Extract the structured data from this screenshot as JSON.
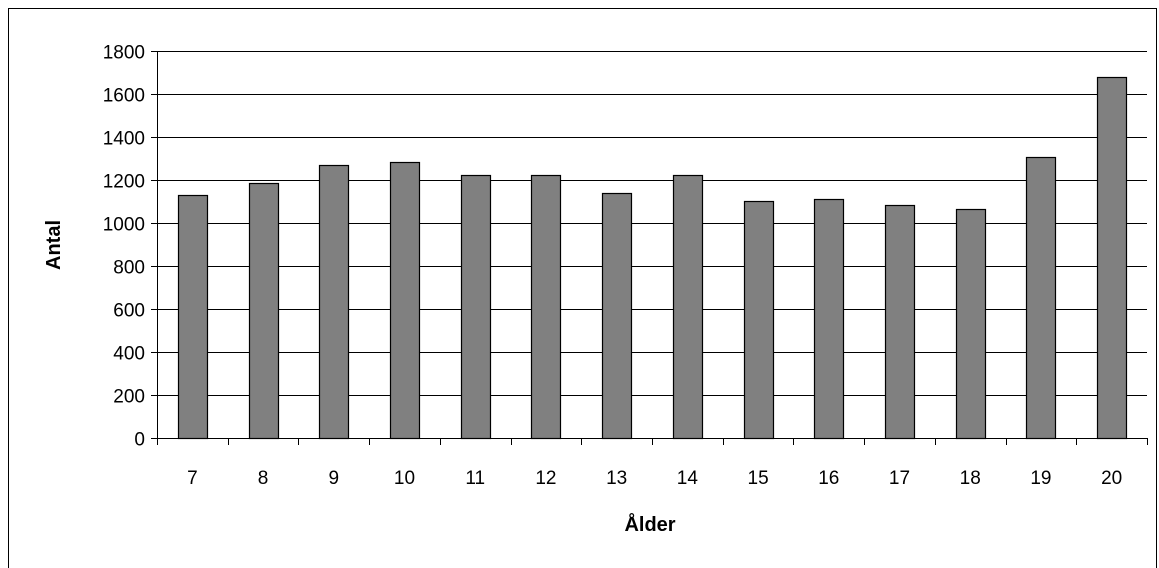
{
  "chart_data": {
    "type": "bar",
    "title": "",
    "xlabel": "Ålder",
    "ylabel": "Antal",
    "categories": [
      "7",
      "8",
      "9",
      "10",
      "11",
      "12",
      "13",
      "14",
      "15",
      "16",
      "17",
      "18",
      "19",
      "20"
    ],
    "values": [
      1130,
      1185,
      1270,
      1285,
      1222,
      1222,
      1140,
      1222,
      1100,
      1110,
      1082,
      1065,
      1305,
      1680
    ],
    "ylim": [
      0,
      1800
    ],
    "yticks": [
      "0",
      "200",
      "400",
      "600",
      "800",
      "1000",
      "1200",
      "1400",
      "1600",
      "1800"
    ],
    "grid": true,
    "legend": "none",
    "colors": {
      "bar_fill": "#808080",
      "bar_stroke": "#000000",
      "gridline": "#000000"
    }
  }
}
